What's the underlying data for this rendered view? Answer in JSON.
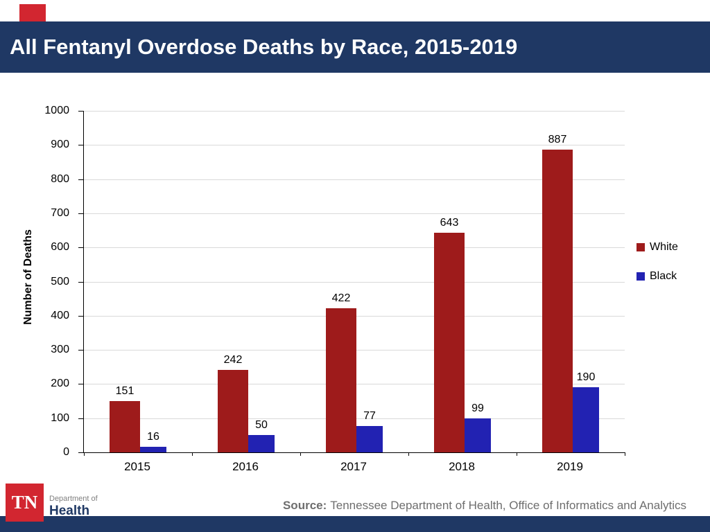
{
  "header": {
    "title": "All Fentanyl Overdose Deaths by Race, 2015-2019"
  },
  "chart_data": {
    "type": "bar",
    "title": "All Fentanyl Overdose Deaths by Race, 2015-2019",
    "categories": [
      "2015",
      "2016",
      "2017",
      "2018",
      "2019"
    ],
    "series": [
      {
        "name": "White",
        "color": "#9e1b1b",
        "values": [
          151,
          242,
          422,
          643,
          887
        ]
      },
      {
        "name": "Black",
        "color": "#2222b2",
        "values": [
          16,
          50,
          77,
          99,
          190
        ]
      }
    ],
    "xlabel": "",
    "ylabel": "Number of Deaths",
    "ylim": [
      0,
      1000
    ],
    "ytick_step": 100,
    "grid": true,
    "legend_position": "right"
  },
  "source": {
    "label": "Source:",
    "text": "Tennessee Department of Health, Office of Informatics and Analytics"
  },
  "logo": {
    "tn": "TN",
    "dept_line": "Department of",
    "health_line": "Health"
  },
  "colors": {
    "header_bg": "#1f3864",
    "footer_bg": "#1f3864",
    "accent_red": "#d22630",
    "logo_red": "#d22630",
    "logo_health_text": "#1f3864",
    "gridline": "#d9d9d9"
  }
}
